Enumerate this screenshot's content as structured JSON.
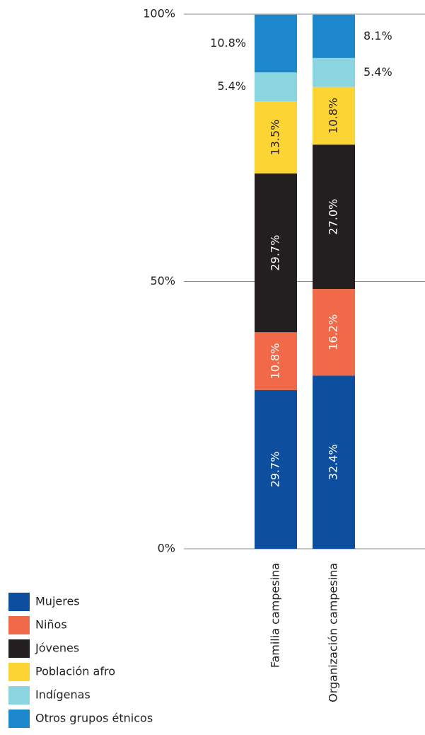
{
  "chart_data": {
    "type": "stacked_bar",
    "categories": [
      "Familia campesina",
      "Organización campesina"
    ],
    "series": [
      {
        "name": "Mujeres",
        "color": "#0d4e9e",
        "values": [
          29.7,
          32.4
        ],
        "value_labels": [
          "29.7%",
          "32.4%"
        ]
      },
      {
        "name": "Niños",
        "color": "#f06a4a",
        "values": [
          10.8,
          16.2
        ],
        "value_labels": [
          "10.8%",
          "16.2%"
        ]
      },
      {
        "name": "Jóvenes",
        "color": "#231f20",
        "values": [
          29.7,
          27.0
        ],
        "value_labels": [
          "29.7%",
          "27.0%"
        ]
      },
      {
        "name": "Población afro",
        "color": "#fcd535",
        "values": [
          13.5,
          10.8
        ],
        "value_labels": [
          "13.5%",
          "10.8%"
        ]
      },
      {
        "name": "Indígenas",
        "color": "#8ad5e0",
        "values": [
          5.4,
          5.4
        ],
        "value_labels": [
          "5.4%",
          "5.4%"
        ]
      },
      {
        "name": "Otros grupos étnicos",
        "color": "#1d87cb",
        "values": [
          10.8,
          8.1
        ],
        "value_labels": [
          "10.8%",
          "8.1%"
        ]
      }
    ],
    "ylim": [
      0,
      100
    ],
    "yticks": [
      {
        "value": 0,
        "label": "0%"
      },
      {
        "value": 50,
        "label": "50%"
      },
      {
        "value": 100,
        "label": "100%"
      }
    ],
    "grid": true
  }
}
